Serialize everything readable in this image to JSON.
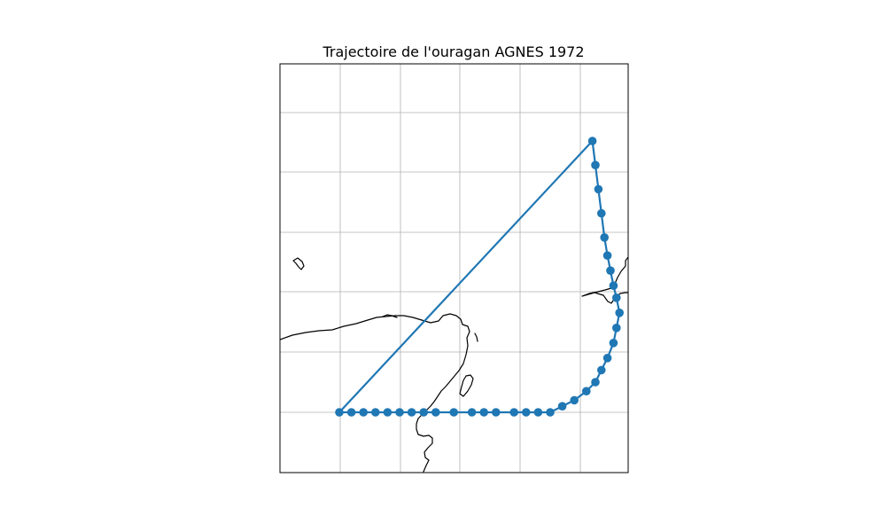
{
  "map": {
    "title": "Trajectoire de l'ouragan AGNES 1972",
    "track_color": "#1f77b4",
    "coast_color": "#000000",
    "grid_color": "#b0b0b0",
    "grid_on": true,
    "track_points": [
      [
        -95.0,
        20.0
      ],
      [
        -94.8,
        20.0
      ],
      [
        -94.6,
        20.0
      ],
      [
        -94.4,
        20.0
      ],
      [
        -94.2,
        20.0
      ],
      [
        -94.0,
        20.0
      ],
      [
        -93.8,
        20.0
      ],
      [
        -93.6,
        20.0
      ],
      [
        -93.4,
        20.0
      ],
      [
        -93.1,
        20.0
      ],
      [
        -92.8,
        20.0
      ],
      [
        -92.6,
        20.0
      ],
      [
        -92.4,
        20.0
      ],
      [
        -92.1,
        20.0
      ],
      [
        -91.9,
        20.0
      ],
      [
        -91.7,
        20.0
      ],
      [
        -91.5,
        20.0
      ],
      [
        -91.3,
        20.1
      ],
      [
        -91.1,
        20.2
      ],
      [
        -90.9,
        20.35
      ],
      [
        -90.75,
        20.5
      ],
      [
        -90.65,
        20.7
      ],
      [
        -90.55,
        20.9
      ],
      [
        -90.45,
        21.15
      ],
      [
        -90.4,
        21.4
      ],
      [
        -90.35,
        21.65
      ],
      [
        -90.4,
        21.9
      ],
      [
        -90.45,
        22.1
      ],
      [
        -90.5,
        22.35
      ],
      [
        -90.55,
        22.6
      ],
      [
        -90.6,
        22.9
      ],
      [
        -90.65,
        23.3
      ],
      [
        -90.7,
        23.7
      ],
      [
        -90.75,
        24.1
      ],
      [
        -90.8,
        24.5
      ],
      [
        -95.0,
        20.0
      ]
    ]
  }
}
